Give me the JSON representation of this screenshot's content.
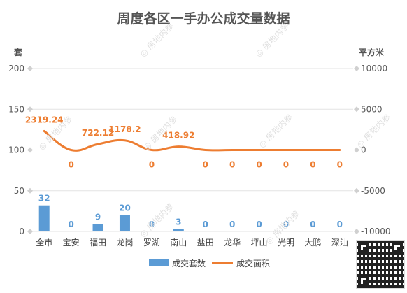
{
  "page": {
    "title": "周度各区一手办公成交量数据"
  },
  "watermark": "房地内参",
  "chart_data": {
    "type": "bar+line",
    "title": "周度各区一手办公成交量数据",
    "categories": [
      "全市",
      "宝安",
      "福田",
      "龙岗",
      "罗湖",
      "南山",
      "盐田",
      "龙华",
      "坪山",
      "光明",
      "大鹏",
      "深汕"
    ],
    "y_left": {
      "unit": "套",
      "range": [
        0,
        200
      ],
      "ticks": [
        0,
        50,
        100,
        150,
        200
      ]
    },
    "y_right": {
      "unit": "平方米",
      "range": [
        -10000,
        10000
      ],
      "ticks": [
        -10000,
        -5000,
        0,
        5000,
        10000
      ]
    },
    "series": [
      {
        "name": "成交套数",
        "type": "bar",
        "axis": "left",
        "color": "#5b9bd5",
        "values": [
          32,
          0,
          9,
          20,
          0,
          3,
          0,
          0,
          0,
          0,
          0,
          0
        ],
        "labels": [
          "32",
          "0",
          "9",
          "20",
          "0",
          "3",
          "0",
          "0",
          "0",
          "0",
          "0",
          "0"
        ]
      },
      {
        "name": "成交面积",
        "type": "line",
        "axis": "right",
        "color": "#ed7d31",
        "values": [
          2319.24,
          0,
          722.12,
          1178.2,
          0,
          418.92,
          0,
          0,
          0,
          0,
          0,
          0
        ],
        "labels": [
          "2319.24",
          "0",
          "722.12",
          "1178.2",
          "0",
          "418.92",
          "0",
          "0",
          "0",
          "0",
          "0",
          "0"
        ]
      }
    ],
    "legend_position": "bottom",
    "grid": true
  }
}
